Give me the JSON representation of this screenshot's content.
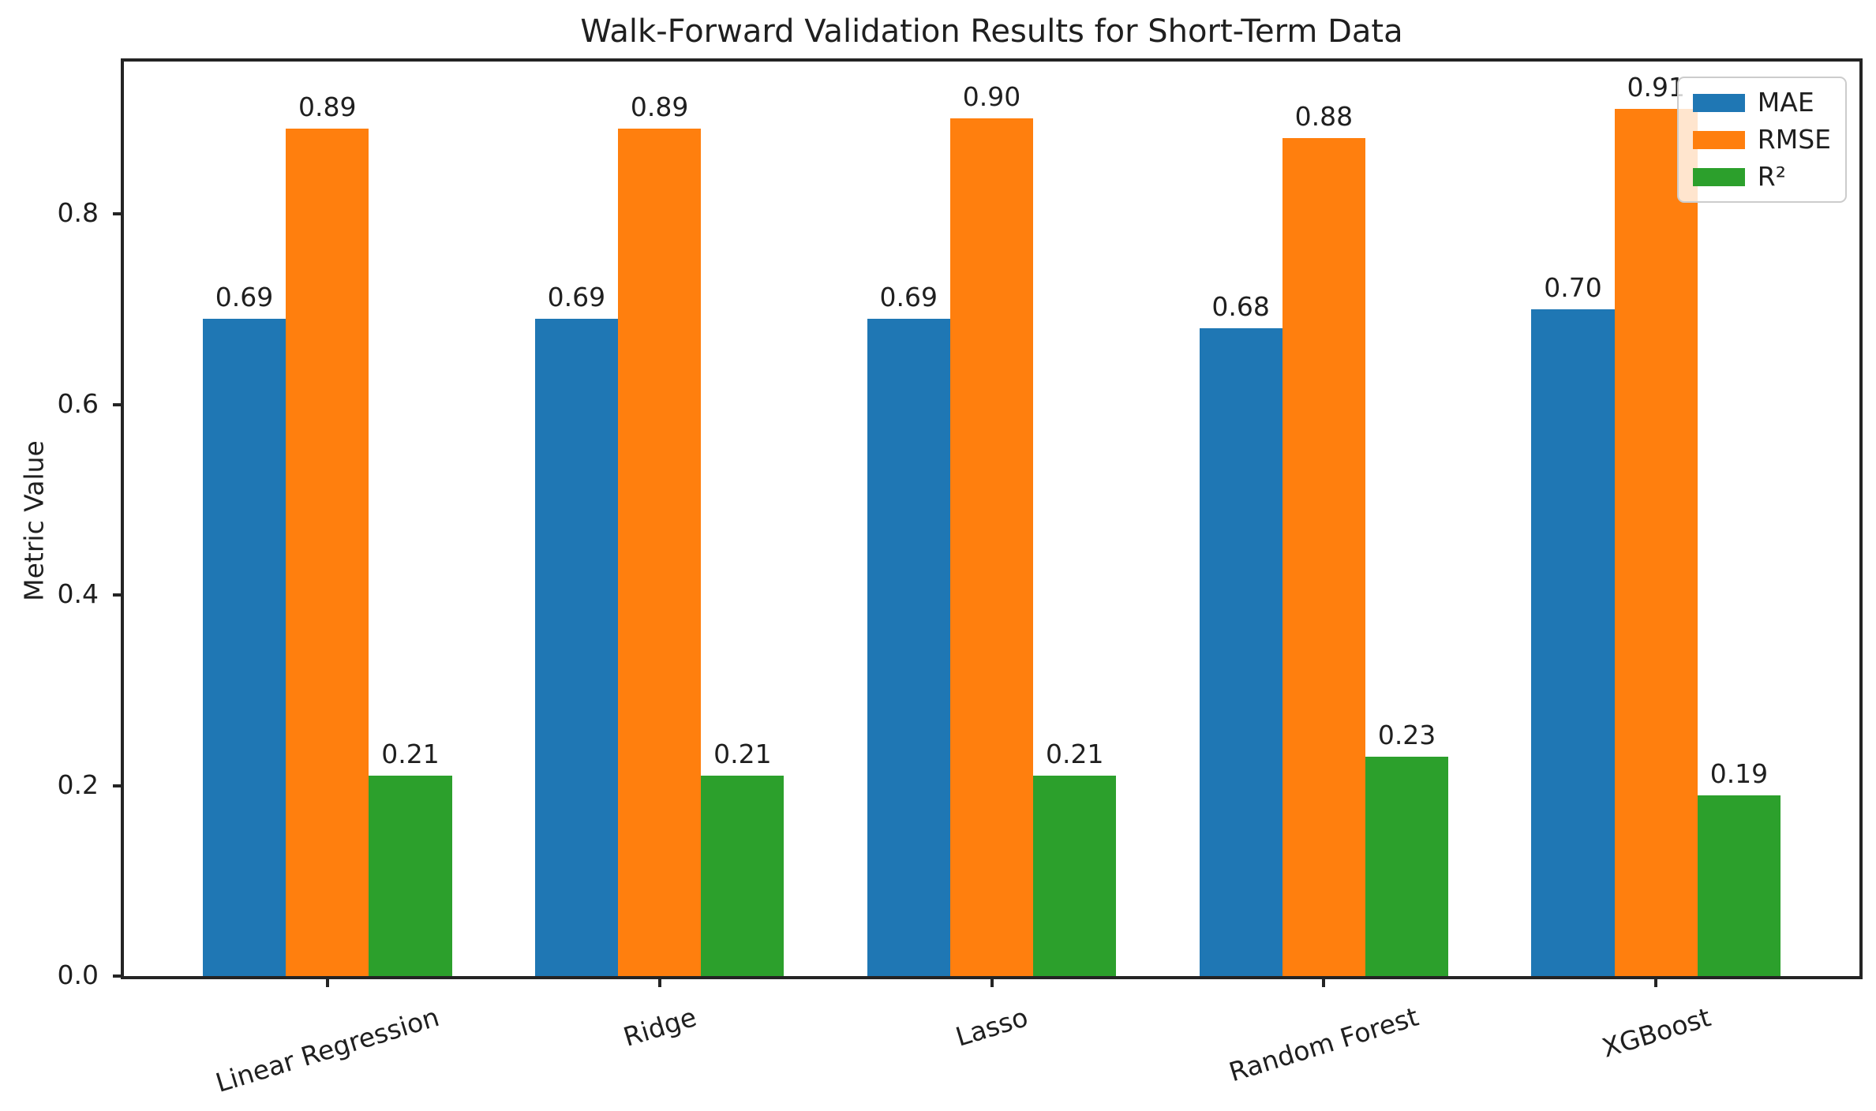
{
  "figure": {
    "background": "#ffffff"
  },
  "chart_data": {
    "type": "bar",
    "title": "Walk-Forward Validation Results for Short-Term Data",
    "xlabel": "",
    "ylabel": "Metric Value",
    "categories": [
      "Linear Regression",
      "Ridge",
      "Lasso",
      "Random Forest",
      "XGBoost"
    ],
    "series": [
      {
        "name": "MAE",
        "color": "#1f77b4",
        "values": [
          0.69,
          0.69,
          0.69,
          0.68,
          0.7
        ]
      },
      {
        "name": "RMSE",
        "color": "#ff7f0e",
        "values": [
          0.89,
          0.89,
          0.9,
          0.88,
          0.91
        ]
      },
      {
        "name": "R²",
        "color": "#2ca02c",
        "values": [
          0.21,
          0.21,
          0.21,
          0.23,
          0.19
        ]
      }
    ],
    "yticks": [
      0.0,
      0.2,
      0.4,
      0.6,
      0.8
    ],
    "ytick_decimals": 1,
    "value_decimals": 2,
    "ylim": [
      0,
      0.96
    ],
    "xlim": [
      -0.6125,
      4.6125
    ],
    "bar_width": 0.25,
    "xtick_rotation_deg": 17,
    "grid": false,
    "legend_position": "upper right"
  },
  "style": {
    "text_color": "#1f1f1f",
    "spine_color": "#242424",
    "legend_border_color": "#cccccc"
  }
}
